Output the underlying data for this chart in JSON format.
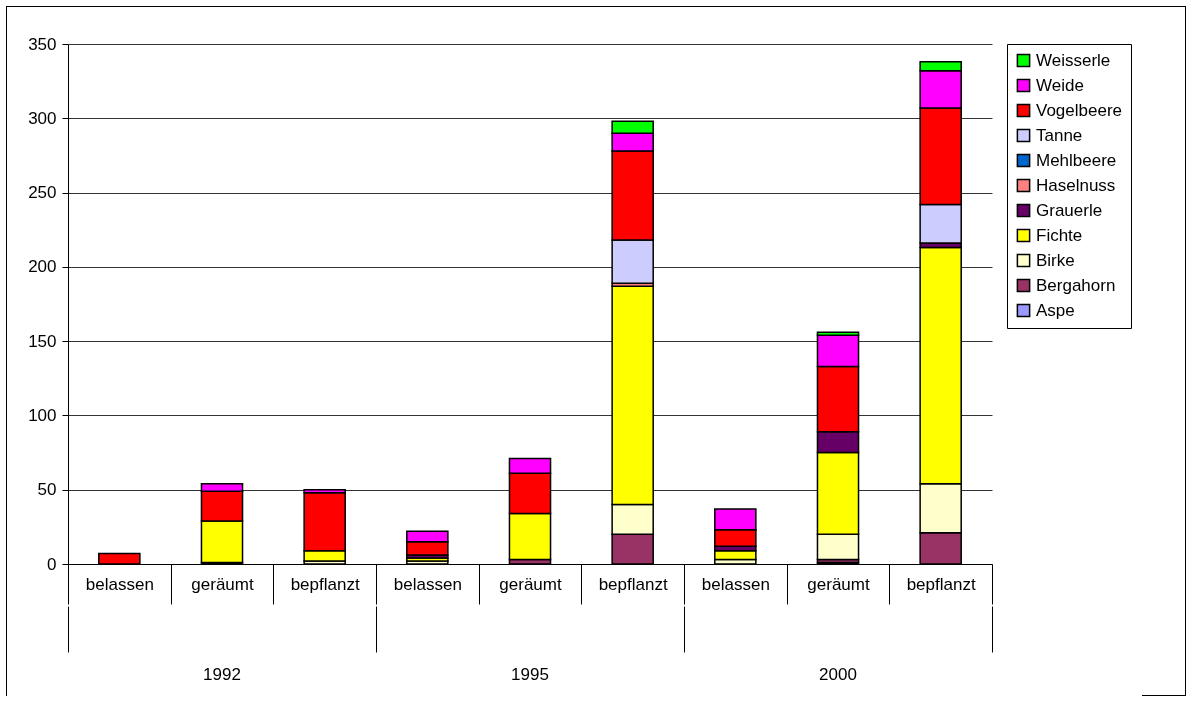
{
  "chart_data": {
    "type": "bar",
    "stacked": true,
    "categories": [
      "belassen",
      "geräumt",
      "bepflanzt",
      "belassen",
      "geräumt",
      "bepflanzt",
      "belassen",
      "geräumt",
      "bepflanzt"
    ],
    "annotations": [
      "1992",
      "1995",
      "2000"
    ],
    "ylim": [
      0,
      350
    ],
    "yticks": [
      0,
      50,
      100,
      150,
      200,
      250,
      300,
      350
    ],
    "grid": "y",
    "legend": "right",
    "series": [
      {
        "name": "Aspe",
        "color": "#9999ff",
        "values": [
          0,
          0,
          0,
          0,
          0,
          0,
          0,
          1,
          0
        ]
      },
      {
        "name": "Bergahorn",
        "color": "#993366",
        "values": [
          0,
          1,
          0,
          0,
          3,
          20,
          0,
          2,
          21
        ]
      },
      {
        "name": "Birke",
        "color": "#ffffcc",
        "values": [
          0,
          0,
          2,
          2,
          0,
          20,
          3,
          17,
          33
        ]
      },
      {
        "name": "Fichte",
        "color": "#ffff00",
        "values": [
          0,
          28,
          7,
          2,
          31,
          147,
          6,
          55,
          159
        ]
      },
      {
        "name": "Grauerle",
        "color": "#660066",
        "values": [
          0,
          0,
          0,
          2,
          0,
          0,
          3,
          14,
          3
        ]
      },
      {
        "name": "Haselnuss",
        "color": "#ff8080",
        "values": [
          0,
          0,
          0,
          0,
          0,
          2,
          0,
          0,
          0
        ]
      },
      {
        "name": "Mehlbeere",
        "color": "#0066cc",
        "values": [
          0,
          0,
          0,
          0,
          0,
          0,
          0,
          0,
          0
        ]
      },
      {
        "name": "Tanne",
        "color": "#ccccff",
        "values": [
          0,
          0,
          0,
          0,
          0,
          29,
          0,
          0,
          26
        ]
      },
      {
        "name": "Vogelbeere",
        "color": "#ff0000",
        "values": [
          7,
          20,
          39,
          9,
          27,
          60,
          11,
          44,
          65
        ]
      },
      {
        "name": "Weide",
        "color": "#ff00ff",
        "values": [
          0,
          5,
          2,
          7,
          10,
          12,
          14,
          21,
          25
        ]
      },
      {
        "name": "Weisserle",
        "color": "#00ff00",
        "values": [
          0,
          0,
          0,
          0,
          0,
          8,
          0,
          2,
          6
        ]
      }
    ]
  }
}
